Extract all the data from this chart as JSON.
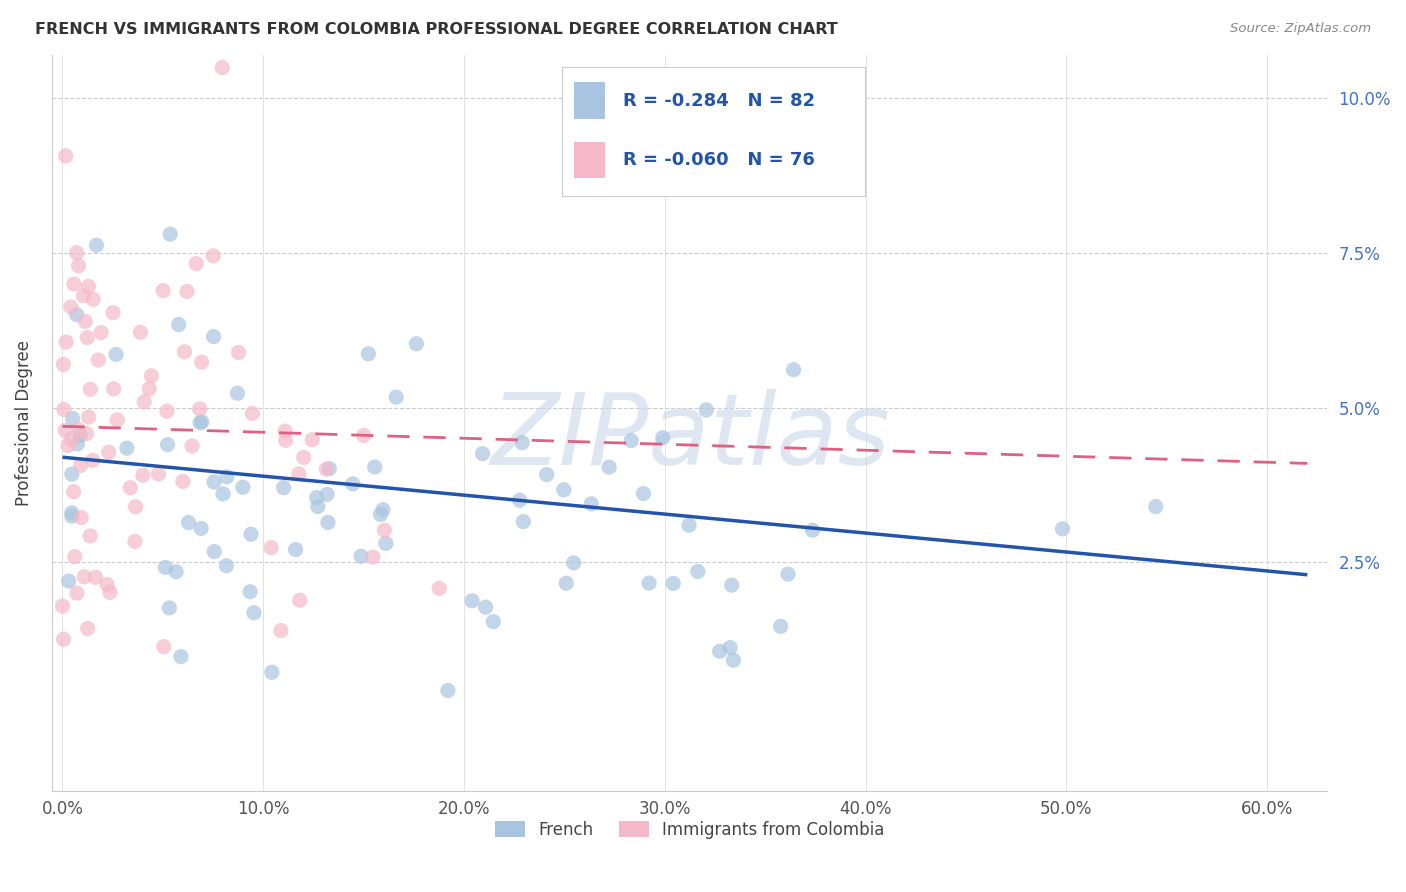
{
  "title": "FRENCH VS IMMIGRANTS FROM COLOMBIA PROFESSIONAL DEGREE CORRELATION CHART",
  "source": "Source: ZipAtlas.com",
  "ylabel": "Professional Degree",
  "xlabel_ticks": [
    "0.0%",
    "10.0%",
    "20.0%",
    "30.0%",
    "40.0%",
    "50.0%",
    "60.0%"
  ],
  "xlabel_vals": [
    0.0,
    0.1,
    0.2,
    0.3,
    0.4,
    0.5,
    0.6
  ],
  "ylabel_ticks": [
    "2.5%",
    "5.0%",
    "7.5%",
    "10.0%"
  ],
  "ylabel_vals": [
    0.025,
    0.05,
    0.075,
    0.1
  ],
  "xlim": [
    -0.005,
    0.63
  ],
  "ylim": [
    -0.012,
    0.107
  ],
  "french_R": -0.284,
  "french_N": 82,
  "colombia_R": -0.06,
  "colombia_N": 76,
  "french_color": "#a8c4e0",
  "colombia_color": "#f4b8c8",
  "french_line_color": "#2255aa",
  "colombia_line_color": "#e06080",
  "watermark": "ZIPatlas",
  "legend_french_label": "French",
  "legend_colombia_label": "Immigrants from Colombia"
}
